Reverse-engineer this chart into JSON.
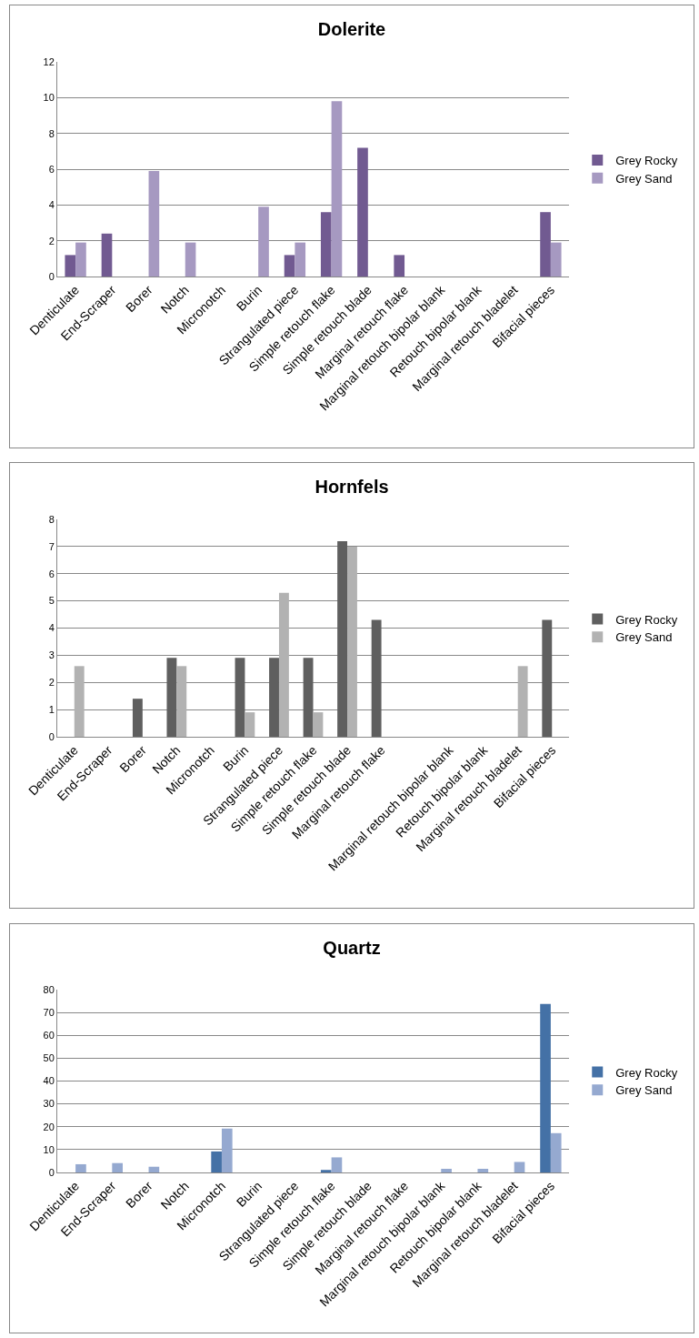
{
  "chart_data": [
    {
      "type": "bar",
      "title": "Dolerite",
      "categories": [
        "Denticulate",
        "End-Scraper",
        "Borer",
        "Notch",
        "Micronotch",
        "Burin",
        "Strangulated piece",
        "Simple retouch flake",
        "Simple retouch blade",
        "Marginal retouch flake",
        "Marginal retouch bipolar blank",
        "Retouch bipolar blank",
        "Marginal retouch bladelet",
        "Bifacial pieces"
      ],
      "series": [
        {
          "name": "Grey Rocky",
          "color": "#715a91",
          "values": [
            1.2,
            2.4,
            null,
            null,
            null,
            null,
            1.2,
            3.6,
            7.2,
            1.2,
            null,
            null,
            null,
            3.6
          ]
        },
        {
          "name": "Grey Sand",
          "color": "#a699c1",
          "values": [
            1.9,
            null,
            5.9,
            1.9,
            null,
            3.9,
            1.9,
            9.8,
            null,
            null,
            null,
            null,
            null,
            1.9
          ]
        }
      ],
      "ylim": [
        0,
        12
      ],
      "yticks": [
        0,
        2,
        4,
        6,
        8,
        10,
        12
      ],
      "grid": "y",
      "legend": "right"
    },
    {
      "type": "bar",
      "title": "Hornfels",
      "categories": [
        "Denticulate",
        "End-Scraper",
        "Borer",
        "Notch",
        "Micronotch",
        "Burin",
        "Strangulated piece",
        "Simple retouch flake",
        "Simple retouch blade",
        "Marginal retouch flake",
        null,
        "Marginal retouch bipolar blank",
        "Retouch bipolar blank",
        "Marginal retouch bladelet",
        "Bifacial pieces"
      ],
      "series": [
        {
          "name": "Grey Rocky",
          "color": "#5f5f5f",
          "values": [
            null,
            null,
            1.4,
            2.9,
            null,
            2.9,
            2.9,
            2.9,
            7.2,
            4.3,
            null,
            null,
            null,
            null,
            4.3
          ]
        },
        {
          "name": "Grey Sand",
          "color": "#b2b2b2",
          "values": [
            2.6,
            null,
            null,
            2.6,
            null,
            0.9,
            5.3,
            0.9,
            7.0,
            null,
            null,
            null,
            null,
            2.6,
            null
          ]
        }
      ],
      "ylim": [
        0,
        8
      ],
      "yticks": [
        0,
        1,
        2,
        3,
        4,
        5,
        6,
        7,
        8
      ],
      "grid": "y",
      "legend": "right"
    },
    {
      "type": "bar",
      "title": "Quartz",
      "categories": [
        "Denticulate",
        "End-Scraper",
        "Borer",
        "Notch",
        "Micronotch",
        "Burin",
        "Strangulated piece",
        "Simple retouch flake",
        "Simple retouch blade",
        "Marginal retouch flake",
        "Marginal retouch bipolar blank",
        "Retouch bipolar blank",
        "Marginal retouch bladelet",
        "Bifacial pieces"
      ],
      "series": [
        {
          "name": "Grey Rocky",
          "color": "#4471a6",
          "values": [
            null,
            null,
            null,
            null,
            9.2,
            null,
            null,
            1.1,
            null,
            null,
            null,
            null,
            null,
            73.7
          ]
        },
        {
          "name": "Grey Sand",
          "color": "#95a9d0",
          "values": [
            3.6,
            4.1,
            2.5,
            null,
            19.2,
            null,
            null,
            6.6,
            null,
            null,
            1.6,
            1.6,
            4.6,
            17.2
          ]
        }
      ],
      "ylim": [
        0,
        80
      ],
      "yticks": [
        0,
        10,
        20,
        30,
        40,
        50,
        60,
        70,
        80
      ],
      "grid": "y",
      "legend": "right"
    }
  ]
}
